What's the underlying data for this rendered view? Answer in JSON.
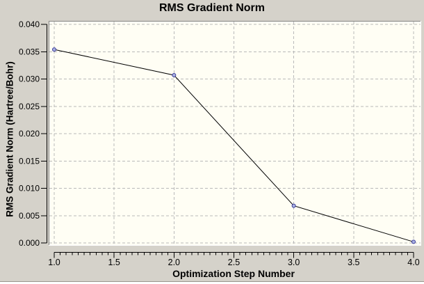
{
  "window": {
    "background_color": "#d5d2ca"
  },
  "chart_data": {
    "type": "line",
    "title": "RMS Gradient Norm",
    "xlabel": "Optimization Step Number",
    "ylabel": "RMS Gradient Norm (Hartree/Bohr)",
    "x": [
      1.0,
      2.0,
      3.0,
      4.0
    ],
    "y": [
      0.0354,
      0.0307,
      0.0068,
      0.0002
    ],
    "xlim": [
      1.0,
      4.0
    ],
    "ylim": [
      0.0,
      0.04
    ],
    "xticks": {
      "values": [
        1.0,
        1.5,
        2.0,
        2.5,
        3.0,
        3.5,
        4.0
      ],
      "labels": [
        "1.0",
        "1.5",
        "2.0",
        "2.5",
        "3.0",
        "3.5",
        "4.0"
      ]
    },
    "yticks": {
      "values": [
        0.0,
        0.005,
        0.01,
        0.015,
        0.02,
        0.025,
        0.03,
        0.035,
        0.04
      ],
      "labels": [
        "0.000",
        "0.005",
        "0.010",
        "0.015",
        "0.020",
        "0.025",
        "0.030",
        "0.035",
        "0.040"
      ]
    },
    "x_minor_step": 0.05,
    "grid": {
      "show": true,
      "style": "dashed",
      "color": "#b9b9b9"
    },
    "legend": {
      "show": false
    },
    "plot_background": "#fffef4",
    "frame_shadow_color": "#858585",
    "frame_highlight_color": "#ffffff",
    "axis_color": "#000000",
    "line_color": "#000000",
    "marker": {
      "shape": "circle",
      "fill": "#a9b1e1",
      "stroke": "#39399b"
    }
  }
}
